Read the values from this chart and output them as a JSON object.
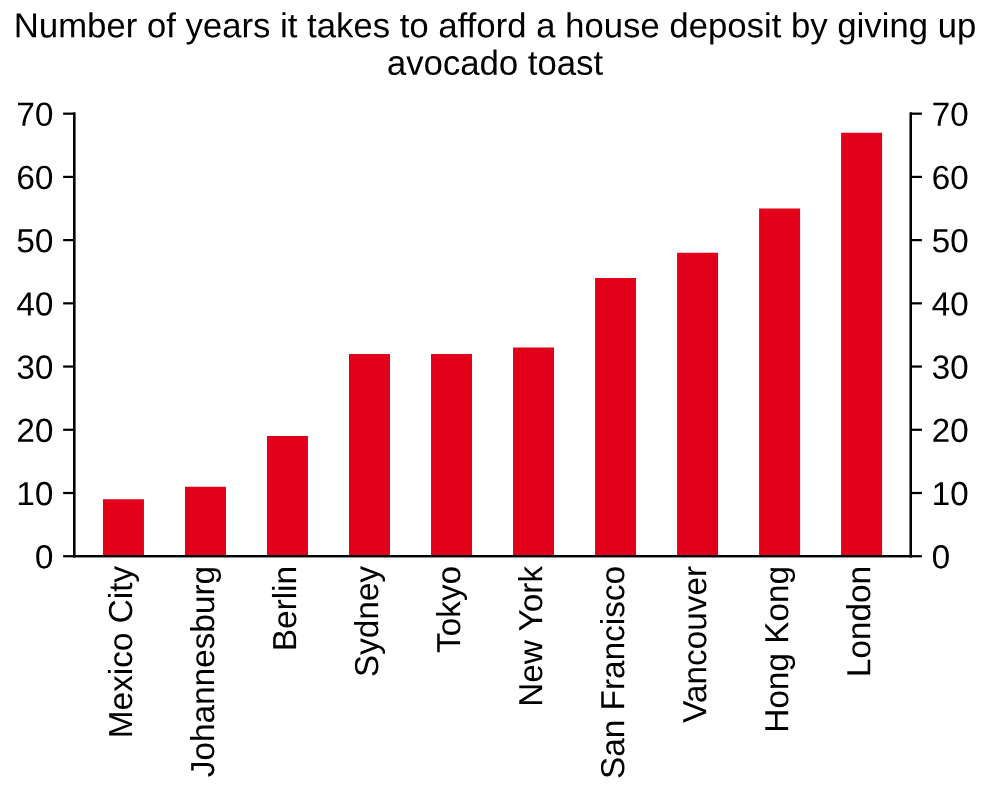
{
  "chart_data": {
    "type": "bar",
    "title": "Number of years it takes to afford a house deposit by giving up avocado toast",
    "categories": [
      "Mexico City",
      "Johannesburg",
      "Berlin",
      "Sydney",
      "Tokyo",
      "New York",
      "San Francisco",
      "Vancouver",
      "Hong Kong",
      "London"
    ],
    "values": [
      9,
      11,
      19,
      32,
      32,
      33,
      44,
      48,
      55,
      67
    ],
    "color": "#e2001a",
    "ylim": [
      0,
      70
    ],
    "yticks": [
      0,
      10,
      20,
      30,
      40,
      50,
      60,
      70
    ],
    "y2lim": [
      0,
      70
    ],
    "y2ticks": [
      0,
      10,
      20,
      30,
      40,
      50,
      60,
      70
    ],
    "grid": false,
    "legend": false
  }
}
